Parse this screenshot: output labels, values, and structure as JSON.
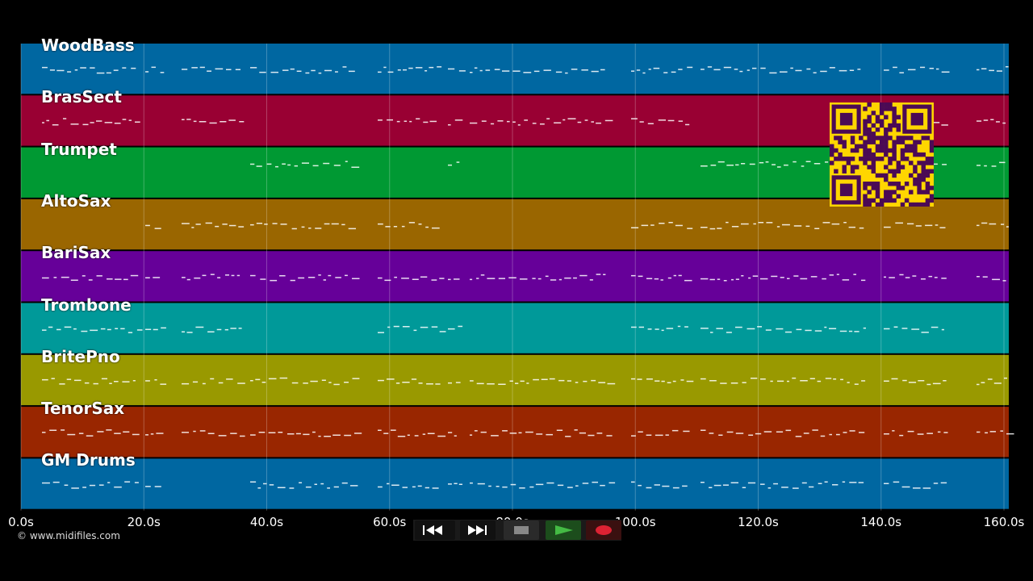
{
  "tracks": [
    {
      "name": "WoodBass",
      "color": "#0067a1"
    },
    {
      "name": "BrasSect",
      "color": "#990033"
    },
    {
      "name": "Trumpet",
      "color": "#009933"
    },
    {
      "name": "AltoSax",
      "color": "#9a6600"
    },
    {
      "name": "BariSax",
      "color": "#660099"
    },
    {
      "name": "Trombone",
      "color": "#009999"
    },
    {
      "name": "BritePno",
      "color": "#999900"
    },
    {
      "name": "TenorSax",
      "color": "#992600"
    },
    {
      "name": "GM Drums",
      "color": "#0067a1"
    }
  ],
  "timeline": {
    "ticks": [
      "0.0s",
      "20.0s",
      "40.0s",
      "60.0s",
      "80.0s",
      "100.0s",
      "120.0s",
      "140.0s",
      "160.0s"
    ]
  },
  "copyright": "© www.midifiles.com",
  "transport": {
    "rewind_icon": "rewind-icon",
    "forward_icon": "fast-forward-icon",
    "stop_icon": "stop-icon",
    "play_icon": "play-icon",
    "record_icon": "record-icon"
  },
  "qr_icon": "qr-code-icon"
}
